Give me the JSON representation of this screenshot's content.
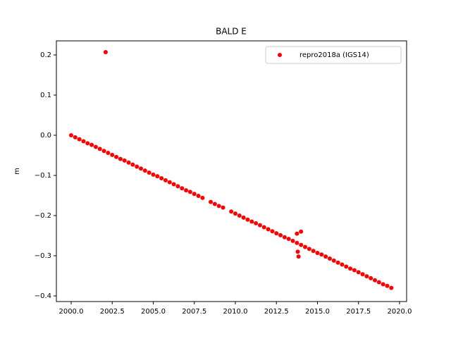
{
  "chart_data": {
    "type": "scatter",
    "title": "BALD E",
    "y_label": "m",
    "x": [
      2000.0,
      2000.25,
      2000.5,
      2000.75,
      2001.0,
      2001.25,
      2001.5,
      2001.75,
      2002.0,
      2002.25,
      2002.5,
      2002.75,
      2003.0,
      2003.25,
      2003.5,
      2003.75,
      2004.0,
      2004.25,
      2004.5,
      2004.75,
      2005.0,
      2005.25,
      2005.5,
      2005.75,
      2006.0,
      2006.25,
      2006.5,
      2006.75,
      2007.0,
      2007.25,
      2007.5,
      2007.75,
      2008.0,
      2008.5,
      2008.75,
      2009.0,
      2009.25,
      2009.75,
      2010.0,
      2010.25,
      2010.5,
      2010.75,
      2011.0,
      2011.25,
      2011.5,
      2011.75,
      2012.0,
      2012.25,
      2012.5,
      2012.75,
      2013.0,
      2013.25,
      2013.5,
      2013.75,
      2014.0,
      2014.25,
      2014.5,
      2014.75,
      2015.0,
      2015.25,
      2015.5,
      2015.75,
      2016.0,
      2016.25,
      2016.5,
      2016.75,
      2017.0,
      2017.25,
      2017.5,
      2017.75,
      2018.0,
      2018.25,
      2018.5,
      2018.75,
      2019.0,
      2019.25,
      2019.5,
      2002.1,
      2013.75,
      2013.8,
      2013.85,
      2014.0
    ],
    "series": [
      {
        "name": "repro2018a (IGS14)",
        "color": "#ff0000",
        "values": [
          0.0,
          -0.005,
          -0.01,
          -0.015,
          -0.02,
          -0.024,
          -0.029,
          -0.034,
          -0.039,
          -0.044,
          -0.049,
          -0.054,
          -0.059,
          -0.063,
          -0.068,
          -0.073,
          -0.078,
          -0.083,
          -0.088,
          -0.093,
          -0.098,
          -0.102,
          -0.107,
          -0.112,
          -0.117,
          -0.122,
          -0.127,
          -0.132,
          -0.137,
          -0.141,
          -0.146,
          -0.151,
          -0.156,
          -0.166,
          -0.171,
          -0.176,
          -0.18,
          -0.19,
          -0.195,
          -0.2,
          -0.205,
          -0.21,
          -0.215,
          -0.219,
          -0.224,
          -0.229,
          -0.234,
          -0.239,
          -0.244,
          -0.249,
          -0.254,
          -0.258,
          -0.263,
          -0.268,
          -0.273,
          -0.278,
          -0.283,
          -0.288,
          -0.293,
          -0.297,
          -0.302,
          -0.307,
          -0.312,
          -0.317,
          -0.322,
          -0.327,
          -0.332,
          -0.336,
          -0.341,
          -0.346,
          -0.351,
          -0.356,
          -0.361,
          -0.366,
          -0.371,
          -0.375,
          -0.38,
          0.207,
          -0.245,
          -0.29,
          -0.302,
          -0.24
        ]
      }
    ],
    "xlim": [
      1999.1,
      2020.43
    ],
    "ylim": [
      -0.414,
      0.235
    ],
    "xticks": [
      {
        "value": 2000,
        "label": "2000.0"
      },
      {
        "value": 2002.5,
        "label": "2002.5"
      },
      {
        "value": 2005,
        "label": "2005.0"
      },
      {
        "value": 2007.5,
        "label": "2007.5"
      },
      {
        "value": 2010,
        "label": "2010.0"
      },
      {
        "value": 2012.5,
        "label": "2012.5"
      },
      {
        "value": 2015,
        "label": "2015.0"
      },
      {
        "value": 2017.5,
        "label": "2017.5"
      },
      {
        "value": 2020,
        "label": "2020.0"
      }
    ],
    "yticks": [
      {
        "value": -0.4,
        "label": "−0.4"
      },
      {
        "value": -0.3,
        "label": "−0.3"
      },
      {
        "value": -0.2,
        "label": "−0.2"
      },
      {
        "value": -0.1,
        "label": "−0.1"
      },
      {
        "value": 0,
        "label": "0.0"
      },
      0.1,
      0.2
    ],
    "legend": "upper right",
    "grid": false
  }
}
